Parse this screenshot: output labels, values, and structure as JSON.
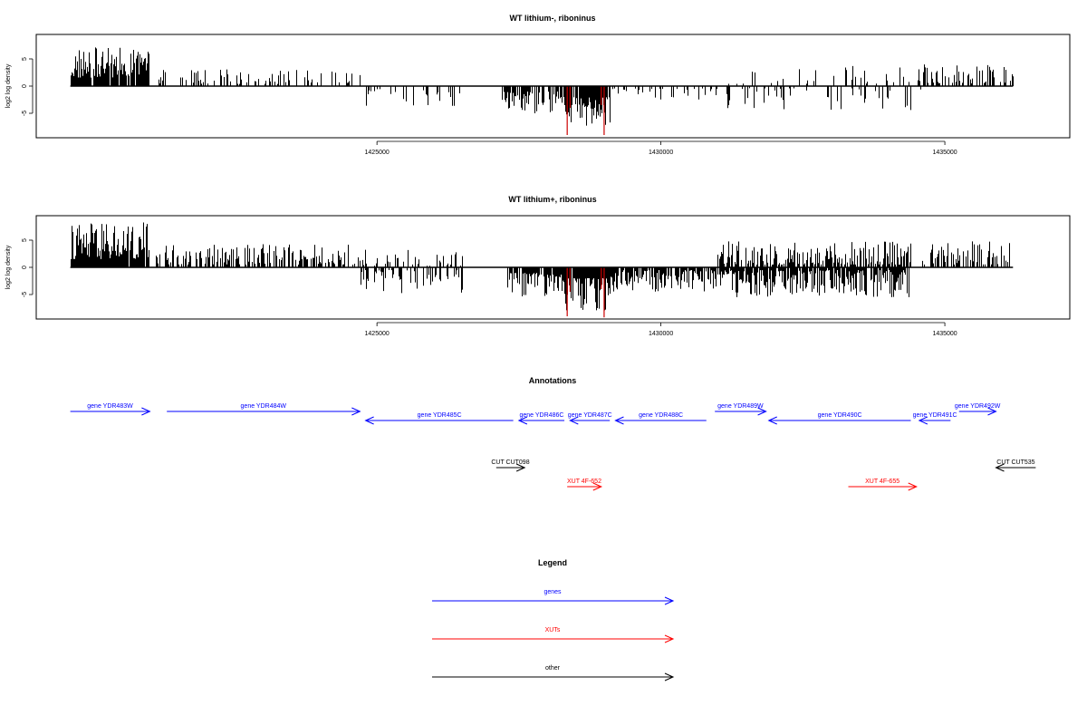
{
  "chart_data": [
    {
      "type": "bar",
      "title": "WT lithium-, riboninus",
      "ylabel": "log2 log density",
      "xlabel": "",
      "xlim": [
        1419000,
        1437200
      ],
      "ylim": [
        -9.5,
        9.5
      ],
      "yticks": [
        5,
        0,
        -5
      ],
      "ytick_labels": [
        "5",
        "0",
        "-5"
      ],
      "xticks": [
        1425000,
        1430000,
        1435000
      ],
      "xtick_labels": [
        "1425000",
        "1430000",
        "1435000"
      ],
      "grid": false,
      "baseline": 0,
      "bar_color": "#000000",
      "highlight_color": "#cc0000",
      "segments": [
        {
          "start": 1419600,
          "end": 1420980,
          "sign": 1,
          "min": 1.5,
          "max": 7.2,
          "density": 0.9
        },
        {
          "start": 1421100,
          "end": 1424700,
          "sign": 1,
          "min": 0.4,
          "max": 3.2,
          "density": 0.25
        },
        {
          "start": 1424800,
          "end": 1426500,
          "sign": -1,
          "min": 0.5,
          "max": 4.0,
          "density": 0.2
        },
        {
          "start": 1427200,
          "end": 1428300,
          "sign": -1,
          "min": 1.0,
          "max": 5.0,
          "density": 0.7
        },
        {
          "start": 1428300,
          "end": 1429100,
          "sign": -1,
          "min": 2.0,
          "max": 7.5,
          "density": 0.95
        },
        {
          "start": 1429100,
          "end": 1431000,
          "sign": -1,
          "min": 0.4,
          "max": 2.5,
          "density": 0.25
        },
        {
          "start": 1431000,
          "end": 1434600,
          "sign": 1,
          "min": 0.4,
          "max": 4.0,
          "density": 0.15
        },
        {
          "start": 1431000,
          "end": 1434600,
          "sign": -1,
          "min": 0.4,
          "max": 4.5,
          "density": 0.2
        },
        {
          "start": 1434600,
          "end": 1436200,
          "sign": 1,
          "min": 0.5,
          "max": 4.0,
          "density": 0.45
        }
      ],
      "red_bars": [
        {
          "x": 1428350,
          "y": -9.0
        },
        {
          "x": 1428400,
          "y": -4.0
        },
        {
          "x": 1428950,
          "y": -3.5
        },
        {
          "x": 1429000,
          "y": -9.0
        }
      ]
    },
    {
      "type": "bar",
      "title": "WT lithium+, riboninus",
      "ylabel": "log2 log density",
      "xlabel": "",
      "xlim": [
        1419000,
        1437200
      ],
      "ylim": [
        -9.5,
        9.5
      ],
      "yticks": [
        5,
        0,
        -5
      ],
      "ytick_labels": [
        "5",
        "0",
        "-5"
      ],
      "xticks": [
        1425000,
        1430000,
        1435000
      ],
      "xtick_labels": [
        "1425000",
        "1430000",
        "1435000"
      ],
      "grid": false,
      "baseline": 0,
      "bar_color": "#000000",
      "highlight_color": "#cc0000",
      "segments": [
        {
          "start": 1419600,
          "end": 1420980,
          "sign": 1,
          "min": 1.5,
          "max": 8.3,
          "density": 0.95
        },
        {
          "start": 1421100,
          "end": 1424700,
          "sign": 1,
          "min": 0.5,
          "max": 4.3,
          "density": 0.55
        },
        {
          "start": 1424700,
          "end": 1426500,
          "sign": 1,
          "min": 0.3,
          "max": 3.5,
          "density": 0.25
        },
        {
          "start": 1424700,
          "end": 1426500,
          "sign": -1,
          "min": 0.5,
          "max": 4.8,
          "density": 0.4
        },
        {
          "start": 1427300,
          "end": 1428300,
          "sign": -1,
          "min": 1.0,
          "max": 5.5,
          "density": 0.9
        },
        {
          "start": 1428300,
          "end": 1429100,
          "sign": -1,
          "min": 2.0,
          "max": 8.0,
          "density": 0.98
        },
        {
          "start": 1429100,
          "end": 1431000,
          "sign": -1,
          "min": 0.5,
          "max": 4.5,
          "density": 0.85
        },
        {
          "start": 1431000,
          "end": 1434400,
          "sign": 1,
          "min": 0.5,
          "max": 4.8,
          "density": 0.7
        },
        {
          "start": 1431000,
          "end": 1434400,
          "sign": -1,
          "min": 0.5,
          "max": 5.5,
          "density": 0.85
        },
        {
          "start": 1434600,
          "end": 1436200,
          "sign": 1,
          "min": 0.5,
          "max": 4.8,
          "density": 0.5
        }
      ],
      "red_bars": [
        {
          "x": 1428350,
          "y": -9.0
        },
        {
          "x": 1428400,
          "y": -4.5
        },
        {
          "x": 1428950,
          "y": -4.0
        },
        {
          "x": 1429000,
          "y": -9.2
        }
      ]
    }
  ],
  "annotations": {
    "title": "Annotations",
    "features": [
      {
        "label": "gene YDR483W",
        "start": 1419600,
        "end": 1421000,
        "strand": "+",
        "kind": "gene",
        "row": 0
      },
      {
        "label": "gene YDR484W",
        "start": 1421300,
        "end": 1424700,
        "strand": "+",
        "kind": "gene",
        "row": 0
      },
      {
        "label": "gene YDR485C",
        "start": 1424800,
        "end": 1427400,
        "strand": "-",
        "kind": "gene",
        "row": 1
      },
      {
        "label": "gene YDR486C",
        "start": 1427500,
        "end": 1428300,
        "strand": "-",
        "kind": "gene",
        "row": 1
      },
      {
        "label": "gene YDR487C",
        "start": 1428400,
        "end": 1429100,
        "strand": "-",
        "kind": "gene",
        "row": 1
      },
      {
        "label": "gene YDR488C",
        "start": 1429200,
        "end": 1430800,
        "strand": "-",
        "kind": "gene",
        "row": 1
      },
      {
        "label": "gene YDR489W",
        "start": 1430950,
        "end": 1431850,
        "strand": "+",
        "kind": "gene",
        "row": 0
      },
      {
        "label": "gene YDR490C",
        "start": 1431900,
        "end": 1434400,
        "strand": "-",
        "kind": "gene",
        "row": 1
      },
      {
        "label": "gene YDR491C",
        "start": 1434550,
        "end": 1435100,
        "strand": "-",
        "kind": "gene",
        "row": 1
      },
      {
        "label": "gene YDR492W",
        "start": 1435250,
        "end": 1435900,
        "strand": "+",
        "kind": "gene",
        "row": 0
      },
      {
        "label": "CUT CUT098",
        "start": 1427100,
        "end": 1427600,
        "strand": "+",
        "kind": "other",
        "row": 2
      },
      {
        "label": "CUT CUT535",
        "start": 1435900,
        "end": 1436600,
        "strand": "-",
        "kind": "other",
        "row": 2
      },
      {
        "label": "XUT 4F-652",
        "start": 1428350,
        "end": 1428950,
        "strand": "+",
        "kind": "xut",
        "row": 3
      },
      {
        "label": "XUT 4F-655",
        "start": 1433300,
        "end": 1434500,
        "strand": "+",
        "kind": "xut",
        "row": 3
      }
    ]
  },
  "legend": {
    "title": "Legend",
    "items": [
      {
        "label": "genes",
        "color": "#0000ff"
      },
      {
        "label": "XUTs",
        "color": "#ff0000"
      },
      {
        "label": "other",
        "color": "#000000"
      }
    ]
  },
  "colors": {
    "gene": "#0000ff",
    "xut": "#ff0000",
    "other": "#000000"
  }
}
